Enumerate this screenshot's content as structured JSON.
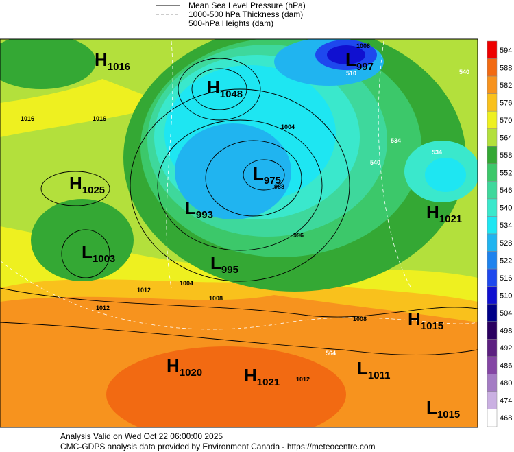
{
  "legend": {
    "items": [
      "Mean Sea Level Pressure (hPa)",
      "1000-500 hPa Thickness (dam)",
      "500-hPa Heights (dam)"
    ]
  },
  "colorbar": {
    "levels": [
      594,
      588,
      582,
      576,
      570,
      564,
      558,
      552,
      546,
      540,
      534,
      528,
      522,
      516,
      510,
      504,
      498,
      492,
      486,
      480,
      474,
      468
    ],
    "colors": [
      "#ee0000",
      "#f26a12",
      "#f7931e",
      "#f9c11c",
      "#eef020",
      "#b3e03c",
      "#34a834",
      "#3cc86a",
      "#3ed89c",
      "#3ae8cc",
      "#1ee6f2",
      "#20b4f0",
      "#1e82ee",
      "#1e48ee",
      "#1010d0",
      "#000088",
      "#2a0060",
      "#5c2080",
      "#8446a4",
      "#a47cc4",
      "#cab0e2",
      "#ffffff"
    ]
  },
  "pressure_centers": [
    {
      "letter": "H",
      "value": 1016
    },
    {
      "letter": "H",
      "value": 1048
    },
    {
      "letter": "L",
      "value": 997
    },
    {
      "letter": "H",
      "value": 1025
    },
    {
      "letter": "L",
      "value": 975
    },
    {
      "letter": "L",
      "value": 993
    },
    {
      "letter": "H",
      "value": 1021
    },
    {
      "letter": "L",
      "value": 1003
    },
    {
      "letter": "L",
      "value": 995
    },
    {
      "letter": "H",
      "value": 1015
    },
    {
      "letter": "H",
      "value": 1020
    },
    {
      "letter": "H",
      "value": 1021
    },
    {
      "letter": "L",
      "value": 1011
    },
    {
      "letter": "L",
      "value": 1015
    }
  ],
  "contour_labels": [
    1016,
    1012,
    1004,
    1008,
    1012,
    1008,
    1016,
    1012,
    988,
    996,
    1004,
    1008,
    534,
    540,
    540,
    534,
    510,
    564
  ],
  "footer": {
    "line1": "Analysis Valid on Wed Oct 22 06:00:00 2025",
    "line2": "CMC-GDPS analysis data provided by Environment Canada - https://meteocentre.com"
  }
}
